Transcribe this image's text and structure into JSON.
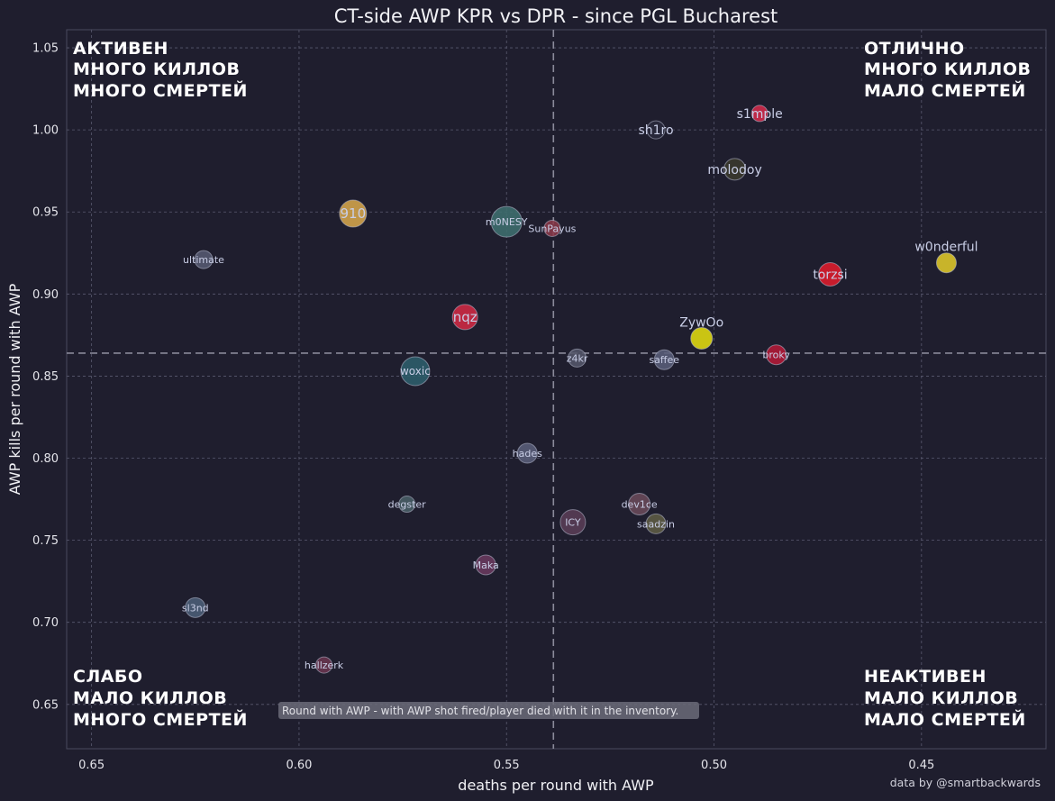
{
  "chart_data": {
    "type": "scatter",
    "title": "CT-side AWP KPR vs DPR - since PGL Bucharest",
    "xlabel": "deaths per round with AWP",
    "ylabel": "AWP kills per round with AWP",
    "x_inverted": true,
    "xlim": [
      0.656,
      0.42
    ],
    "ylim": [
      0.623,
      1.061
    ],
    "xticks": [
      0.65,
      0.6,
      0.55,
      0.5,
      0.45
    ],
    "xtick_labels": [
      "0.65",
      "0.60",
      "0.55",
      "0.50",
      "0.45"
    ],
    "yticks": [
      0.65,
      0.7,
      0.75,
      0.8,
      0.85,
      0.9,
      0.95,
      1.0,
      1.05
    ],
    "ytick_labels": [
      "0.65",
      "0.70",
      "0.75",
      "0.80",
      "0.85",
      "0.90",
      "0.95",
      "1.00",
      "1.05"
    ],
    "grid": true,
    "reference_lines": {
      "x": 0.5387,
      "y": 0.864
    },
    "points": [
      {
        "name": "s1mple",
        "x": 0.489,
        "y": 1.01,
        "size": 9,
        "color": "#d42a4a",
        "label_size": 14,
        "label_dx": 0,
        "label_dy": 5
      },
      {
        "name": "sh1ro",
        "x": 0.514,
        "y": 1.0,
        "size": 10,
        "color": "#2a2a3c",
        "label_size": 14,
        "label_dx": 0,
        "label_dy": 5
      },
      {
        "name": "molodoy",
        "x": 0.495,
        "y": 0.976,
        "size": 12,
        "color": "#3b3a2e",
        "label_size": 14,
        "label_dx": 0,
        "label_dy": 5
      },
      {
        "name": "910",
        "x": 0.587,
        "y": 0.949,
        "size": 15,
        "color": "#d6a64c",
        "label_size": 15,
        "label_dx": 0,
        "label_dy": 5
      },
      {
        "name": "m0NESY",
        "x": 0.55,
        "y": 0.944,
        "size": 17,
        "color": "#3f6f70",
        "label_size": 11,
        "label_dx": 0,
        "label_dy": 4
      },
      {
        "name": "SunPayus",
        "x": 0.539,
        "y": 0.94,
        "size": 9,
        "color": "#8a3a4a",
        "label_size": 11,
        "label_dx": 0,
        "label_dy": 4
      },
      {
        "name": "ultimate",
        "x": 0.623,
        "y": 0.921,
        "size": 10,
        "color": "#565a72",
        "label_size": 11,
        "label_dx": 0,
        "label_dy": 4
      },
      {
        "name": "w0nderful",
        "x": 0.444,
        "y": 0.919,
        "size": 11,
        "color": "#e0ca2a",
        "label_size": 14,
        "label_dx": 0,
        "label_dy": -13
      },
      {
        "name": "torzsi",
        "x": 0.472,
        "y": 0.912,
        "size": 13,
        "color": "#e01c2c",
        "label_size": 14,
        "label_dx": 0,
        "label_dy": 5
      },
      {
        "name": "nqz",
        "x": 0.56,
        "y": 0.886,
        "size": 14,
        "color": "#d22a44",
        "label_size": 15,
        "label_dx": 0,
        "label_dy": 5
      },
      {
        "name": "ZywOo",
        "x": 0.503,
        "y": 0.873,
        "size": 12,
        "color": "#e2dc10",
        "label_size": 14,
        "label_dx": 0,
        "label_dy": -13
      },
      {
        "name": "broky",
        "x": 0.485,
        "y": 0.863,
        "size": 11,
        "color": "#b41a38",
        "label_size": 11,
        "label_dx": 0,
        "label_dy": 4
      },
      {
        "name": "z4kr",
        "x": 0.533,
        "y": 0.861,
        "size": 10,
        "color": "#54566a",
        "label_size": 11,
        "label_dx": 0,
        "label_dy": 4
      },
      {
        "name": "saffee",
        "x": 0.512,
        "y": 0.86,
        "size": 11,
        "color": "#5a5e7a",
        "label_size": 11,
        "label_dx": 0,
        "label_dy": 4
      },
      {
        "name": "woxic",
        "x": 0.572,
        "y": 0.853,
        "size": 16,
        "color": "#2e5f6c",
        "label_size": 12,
        "label_dx": 0,
        "label_dy": 4
      },
      {
        "name": "hades",
        "x": 0.545,
        "y": 0.803,
        "size": 11,
        "color": "#5a5e7a",
        "label_size": 11,
        "label_dx": 0,
        "label_dy": 4
      },
      {
        "name": "degster",
        "x": 0.574,
        "y": 0.772,
        "size": 9,
        "color": "#4a6068",
        "label_size": 11,
        "label_dx": 0,
        "label_dy": 4
      },
      {
        "name": "dev1ce",
        "x": 0.518,
        "y": 0.772,
        "size": 12,
        "color": "#6a4a5a",
        "label_size": 11,
        "label_dx": 0,
        "label_dy": 4
      },
      {
        "name": "ICY",
        "x": 0.534,
        "y": 0.761,
        "size": 14,
        "color": "#5a3e56",
        "label_size": 11,
        "label_dx": 0,
        "label_dy": 4
      },
      {
        "name": "saadzin",
        "x": 0.514,
        "y": 0.76,
        "size": 11,
        "color": "#5e5c44",
        "label_size": 11,
        "label_dx": 0,
        "label_dy": 4
      },
      {
        "name": "Maka",
        "x": 0.555,
        "y": 0.735,
        "size": 11,
        "color": "#6a3a5e",
        "label_size": 11,
        "label_dx": 0,
        "label_dy": 4
      },
      {
        "name": "sl3nd",
        "x": 0.625,
        "y": 0.709,
        "size": 11,
        "color": "#4c5e78",
        "label_size": 11,
        "label_dx": 0,
        "label_dy": 4
      },
      {
        "name": "hallzerk",
        "x": 0.594,
        "y": 0.674,
        "size": 9,
        "color": "#6a3650",
        "label_size": 11,
        "label_dx": 0,
        "label_dy": 4
      }
    ],
    "quadrants": {
      "top_left": [
        "АКТИВЕН",
        "МНОГО КИЛЛОВ",
        "МНОГО СМЕРТЕЙ"
      ],
      "top_right": [
        "ОТЛИЧНО",
        "МНОГО КИЛЛОВ",
        "МАЛО СМЕРТЕЙ"
      ],
      "bottom_left": [
        "СЛАБО",
        "МАЛО КИЛЛОВ",
        "МНОГО СМЕРТЕЙ"
      ],
      "bottom_right": [
        "НЕАКТИВЕН",
        "МАЛО КИЛЛОВ",
        "МАЛО СМЕРТЕЙ"
      ]
    },
    "note": "Round with AWP - with AWP shot fired/player died with it in the inventory.",
    "credit": "data by @smartbackwards"
  },
  "colors": {
    "background": "#1f1e2e",
    "plot_border": "#4a4a5e",
    "grid": "#5a5a70",
    "reference": "#8a8a9a"
  }
}
